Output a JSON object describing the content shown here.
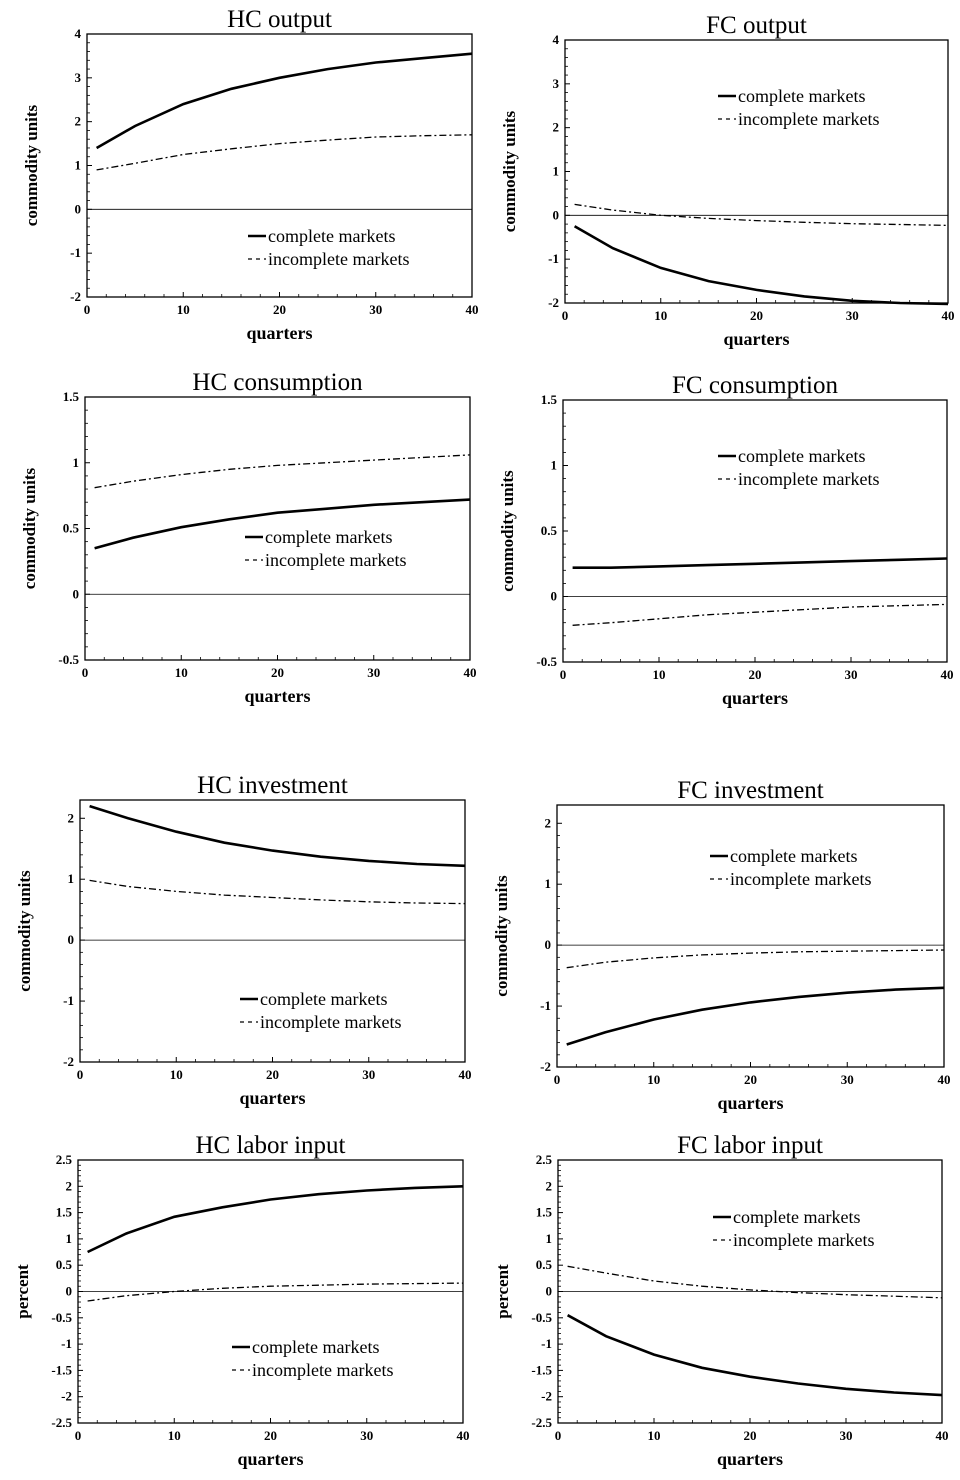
{
  "figure": {
    "panels": [
      {
        "id": "hc-output",
        "title": "HC output",
        "xlabel": "quarters",
        "ylabel": "commodity units",
        "y_ticks": [
          "4",
          "3",
          "2",
          "1",
          "0",
          "-1",
          "-2"
        ],
        "x_ticks": [
          "0",
          "10",
          "20",
          "30",
          "40"
        ],
        "legend": {
          "complete": "complete markets",
          "incomplete": "incomplete markets"
        }
      },
      {
        "id": "fc-output",
        "title": "FC output",
        "xlabel": "quarters",
        "ylabel": "commodity units",
        "y_ticks": [
          "4",
          "3",
          "2",
          "1",
          "0",
          "-1",
          "-2"
        ],
        "x_ticks": [
          "0",
          "10",
          "20",
          "30",
          "40"
        ],
        "legend": {
          "complete": "complete markets",
          "incomplete": "incomplete markets"
        }
      },
      {
        "id": "hc-consumption",
        "title": "HC consumption",
        "xlabel": "quarters",
        "ylabel": "commodity units",
        "y_ticks": [
          "1.5",
          "1",
          "0.5",
          "0",
          "-0.5"
        ],
        "x_ticks": [
          "0",
          "10",
          "20",
          "30",
          "40"
        ],
        "legend": {
          "complete": "complete markets",
          "incomplete": "incomplete markets"
        }
      },
      {
        "id": "fc-consumption",
        "title": "FC consumption",
        "xlabel": "quarters",
        "ylabel": "commodity units",
        "y_ticks": [
          "1.5",
          "1",
          "0.5",
          "0",
          "-0.5"
        ],
        "x_ticks": [
          "0",
          "10",
          "20",
          "30",
          "40"
        ],
        "legend": {
          "complete": "complete markets",
          "incomplete": "incomplete markets"
        }
      },
      {
        "id": "hc-investment",
        "title": "HC investment",
        "xlabel": "quarters",
        "ylabel": "commodity units",
        "y_ticks": [
          "2",
          "1",
          "0",
          "-1",
          "-2"
        ],
        "x_ticks": [
          "0",
          "10",
          "20",
          "30",
          "40"
        ],
        "legend": {
          "complete": "complete markets",
          "incomplete": "incomplete markets"
        }
      },
      {
        "id": "fc-investment",
        "title": "FC investment",
        "xlabel": "quarters",
        "ylabel": "commodity units",
        "y_ticks": [
          "2",
          "1",
          "0",
          "-1",
          "-2"
        ],
        "x_ticks": [
          "0",
          "10",
          "20",
          "30",
          "40"
        ],
        "legend": {
          "complete": "complete markets",
          "incomplete": "incomplete markets"
        }
      },
      {
        "id": "hc-labor",
        "title": "HC labor input",
        "xlabel": "quarters",
        "ylabel": "percent",
        "y_ticks": [
          "2.5",
          "2",
          "1.5",
          "1",
          "0.5",
          "0",
          "-0.5",
          "-1",
          "-1.5",
          "-2",
          "-2.5"
        ],
        "x_ticks": [
          "0",
          "10",
          "20",
          "30",
          "40"
        ],
        "legend": {
          "complete": "complete markets",
          "incomplete": "incomplete markets"
        }
      },
      {
        "id": "fc-labor",
        "title": "FC labor input",
        "xlabel": "quarters",
        "ylabel": "percent",
        "y_ticks": [
          "2.5",
          "2",
          "1.5",
          "1",
          "0.5",
          "0",
          "-0.5",
          "-1",
          "-1.5",
          "-2",
          "-2.5"
        ],
        "x_ticks": [
          "0",
          "10",
          "20",
          "30",
          "40"
        ],
        "legend": {
          "complete": "complete markets",
          "incomplete": "incomplete markets"
        }
      }
    ]
  },
  "chart_data": [
    {
      "type": "line",
      "title": "HC output",
      "xlabel": "quarters",
      "ylabel": "commodity units",
      "xlim": [
        0,
        40
      ],
      "ylim": [
        -2,
        4
      ],
      "legend": "bottom-right",
      "grid": false,
      "x": [
        1,
        5,
        10,
        15,
        20,
        25,
        30,
        35,
        40
      ],
      "series": [
        {
          "name": "complete markets",
          "style": "solid",
          "values": [
            1.4,
            1.9,
            2.4,
            2.75,
            3.0,
            3.2,
            3.35,
            3.45,
            3.55
          ]
        },
        {
          "name": "incomplete markets",
          "style": "dashed",
          "values": [
            0.9,
            1.05,
            1.25,
            1.38,
            1.5,
            1.58,
            1.65,
            1.68,
            1.7
          ]
        }
      ]
    },
    {
      "type": "line",
      "title": "FC output",
      "xlabel": "quarters",
      "ylabel": "commodity units",
      "xlim": [
        0,
        40
      ],
      "ylim": [
        -2,
        4
      ],
      "legend": "top-right",
      "grid": false,
      "x": [
        1,
        5,
        10,
        15,
        20,
        25,
        30,
        35,
        40
      ],
      "series": [
        {
          "name": "complete markets",
          "style": "solid",
          "values": [
            -0.25,
            -0.75,
            -1.2,
            -1.5,
            -1.7,
            -1.85,
            -1.95,
            -2.0,
            -2.02
          ]
        },
        {
          "name": "incomplete markets",
          "style": "dashed",
          "values": [
            0.25,
            0.12,
            0.0,
            -0.07,
            -0.12,
            -0.16,
            -0.19,
            -0.21,
            -0.23
          ]
        }
      ]
    },
    {
      "type": "line",
      "title": "HC consumption",
      "xlabel": "quarters",
      "ylabel": "commodity units",
      "xlim": [
        0,
        40
      ],
      "ylim": [
        -0.5,
        1.5
      ],
      "legend": "bottom-right",
      "grid": false,
      "x": [
        1,
        5,
        10,
        15,
        20,
        25,
        30,
        35,
        40
      ],
      "series": [
        {
          "name": "complete markets",
          "style": "solid",
          "values": [
            0.35,
            0.43,
            0.51,
            0.57,
            0.62,
            0.65,
            0.68,
            0.7,
            0.72
          ]
        },
        {
          "name": "incomplete markets",
          "style": "dashed",
          "values": [
            0.81,
            0.86,
            0.91,
            0.95,
            0.98,
            1.0,
            1.02,
            1.04,
            1.06
          ]
        }
      ]
    },
    {
      "type": "line",
      "title": "FC consumption",
      "xlabel": "quarters",
      "ylabel": "commodity units",
      "xlim": [
        0,
        40
      ],
      "ylim": [
        -0.5,
        1.5
      ],
      "legend": "top-right",
      "grid": false,
      "x": [
        1,
        5,
        10,
        15,
        20,
        25,
        30,
        35,
        40
      ],
      "series": [
        {
          "name": "complete markets",
          "style": "solid",
          "values": [
            0.22,
            0.22,
            0.23,
            0.24,
            0.25,
            0.26,
            0.27,
            0.28,
            0.29
          ]
        },
        {
          "name": "incomplete markets",
          "style": "dashed",
          "values": [
            -0.22,
            -0.2,
            -0.17,
            -0.14,
            -0.12,
            -0.1,
            -0.08,
            -0.07,
            -0.06
          ]
        }
      ]
    },
    {
      "type": "line",
      "title": "HC investment",
      "xlabel": "quarters",
      "ylabel": "commodity units",
      "xlim": [
        0,
        40
      ],
      "ylim": [
        -2,
        2.3
      ],
      "legend": "bottom-right",
      "grid": false,
      "x": [
        1,
        5,
        10,
        15,
        20,
        25,
        30,
        35,
        40
      ],
      "series": [
        {
          "name": "complete markets",
          "style": "solid",
          "values": [
            2.2,
            2.0,
            1.78,
            1.6,
            1.47,
            1.37,
            1.3,
            1.25,
            1.22
          ]
        },
        {
          "name": "incomplete markets",
          "style": "dashed",
          "values": [
            0.98,
            0.88,
            0.8,
            0.74,
            0.7,
            0.66,
            0.63,
            0.61,
            0.6
          ]
        }
      ]
    },
    {
      "type": "line",
      "title": "FC investment",
      "xlabel": "quarters",
      "ylabel": "commodity units",
      "xlim": [
        0,
        40
      ],
      "ylim": [
        -2,
        2.3
      ],
      "legend": "top-right",
      "grid": false,
      "x": [
        1,
        5,
        10,
        15,
        20,
        25,
        30,
        35,
        40
      ],
      "series": [
        {
          "name": "complete markets",
          "style": "solid",
          "values": [
            -1.63,
            -1.43,
            -1.22,
            -1.06,
            -0.94,
            -0.85,
            -0.78,
            -0.73,
            -0.7
          ]
        },
        {
          "name": "incomplete markets",
          "style": "dashed",
          "values": [
            -0.37,
            -0.28,
            -0.21,
            -0.16,
            -0.13,
            -0.11,
            -0.1,
            -0.09,
            -0.08
          ]
        }
      ]
    },
    {
      "type": "line",
      "title": "HC labor input",
      "xlabel": "quarters",
      "ylabel": "percent",
      "xlim": [
        0,
        40
      ],
      "ylim": [
        -2.5,
        2.5
      ],
      "legend": "bottom-right",
      "grid": false,
      "x": [
        1,
        5,
        10,
        15,
        20,
        25,
        30,
        35,
        40
      ],
      "series": [
        {
          "name": "complete markets",
          "style": "solid",
          "values": [
            0.75,
            1.1,
            1.42,
            1.6,
            1.75,
            1.85,
            1.92,
            1.97,
            2.0
          ]
        },
        {
          "name": "incomplete markets",
          "style": "dashed",
          "values": [
            -0.18,
            -0.08,
            0.0,
            0.06,
            0.1,
            0.12,
            0.14,
            0.15,
            0.16
          ]
        }
      ]
    },
    {
      "type": "line",
      "title": "FC labor input",
      "xlabel": "quarters",
      "ylabel": "percent",
      "xlim": [
        0,
        40
      ],
      "ylim": [
        -2.5,
        2.5
      ],
      "legend": "top-right",
      "grid": false,
      "x": [
        1,
        5,
        10,
        15,
        20,
        25,
        30,
        35,
        40
      ],
      "series": [
        {
          "name": "complete markets",
          "style": "solid",
          "values": [
            -0.45,
            -0.85,
            -1.2,
            -1.45,
            -1.62,
            -1.75,
            -1.85,
            -1.92,
            -1.97
          ]
        },
        {
          "name": "incomplete markets",
          "style": "dashed",
          "values": [
            0.48,
            0.35,
            0.2,
            0.1,
            0.03,
            -0.02,
            -0.06,
            -0.09,
            -0.12
          ]
        }
      ]
    }
  ]
}
